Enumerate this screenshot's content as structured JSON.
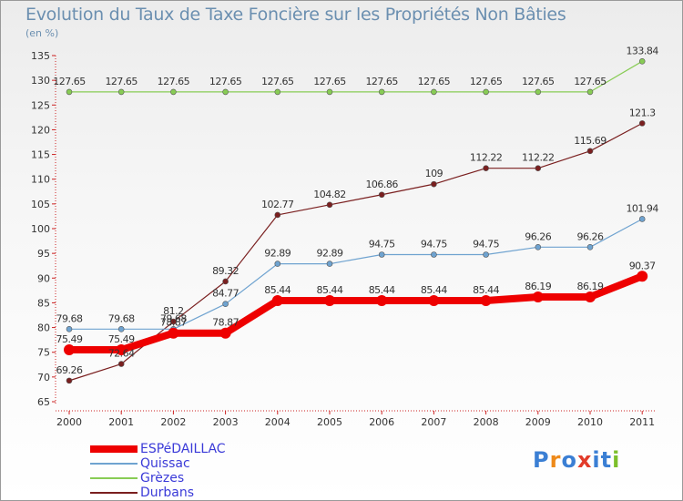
{
  "chart_data": {
    "type": "line",
    "title": "Evolution du Taux de Taxe Foncière sur les Propriétés Non Bâties",
    "ylabel": "(en %)",
    "xlabel": "",
    "categories": [
      "2000",
      "2001",
      "2002",
      "2003",
      "2004",
      "2005",
      "2006",
      "2007",
      "2008",
      "2009",
      "2010",
      "2011"
    ],
    "ylim": [
      65,
      135
    ],
    "yticks": [
      65,
      70,
      75,
      80,
      85,
      90,
      95,
      100,
      105,
      110,
      115,
      120,
      125,
      130,
      135
    ],
    "grid": false,
    "legend_position": "bottom-left",
    "series": [
      {
        "name": "Grèzes",
        "color": "#88cc55",
        "width": 1.2,
        "values": [
          127.65,
          127.65,
          127.65,
          127.65,
          127.65,
          127.65,
          127.65,
          127.65,
          127.65,
          127.65,
          127.65,
          133.84
        ],
        "labels": [
          "127.65",
          "127.65",
          "127.65",
          "127.65",
          "127.65",
          "127.65",
          "127.65",
          "127.65",
          "127.65",
          "127.65",
          "127.65",
          "133.84"
        ]
      },
      {
        "name": "Durbans",
        "color": "#7a1f1f",
        "width": 1.2,
        "values": [
          69.26,
          72.64,
          81.2,
          89.32,
          102.77,
          104.82,
          106.86,
          109,
          112.22,
          112.22,
          115.69,
          121.3
        ],
        "labels": [
          "69.26",
          "72.64",
          "81.2",
          "89.32",
          "102.77",
          "104.82",
          "106.86",
          "109",
          "112.22",
          "112.22",
          "115.69",
          "121.3"
        ]
      },
      {
        "name": "Quissac",
        "color": "#6fa3d0",
        "width": 1.2,
        "values": [
          79.68,
          79.68,
          79.68,
          84.77,
          92.89,
          92.89,
          94.75,
          94.75,
          94.75,
          96.26,
          96.26,
          101.94
        ],
        "labels": [
          "79.68",
          "79.68",
          "79.68",
          "84.77",
          "92.89",
          "92.89",
          "94.75",
          "94.75",
          "94.75",
          "96.26",
          "96.26",
          "101.94"
        ]
      },
      {
        "name": "ESPéDAILLAC",
        "color": "#ee0000",
        "width": 8,
        "values": [
          75.49,
          75.49,
          78.87,
          78.87,
          85.44,
          85.44,
          85.44,
          85.44,
          85.44,
          86.19,
          86.19,
          90.37
        ],
        "labels": [
          "75.49",
          "75.49",
          "78.87",
          "78.87",
          "85.44",
          "85.44",
          "85.44",
          "85.44",
          "85.44",
          "86.19",
          "86.19",
          "90.37"
        ]
      }
    ]
  },
  "legend": {
    "items": [
      {
        "label": "ESPéDAILLAC",
        "color": "#ee0000"
      },
      {
        "label": "Quissac",
        "color": "#6fa3d0"
      },
      {
        "label": "Grèzes",
        "color": "#88cc55"
      },
      {
        "label": "Durbans",
        "color": "#7a1f1f"
      }
    ]
  },
  "brand": {
    "text": "Proxiti",
    "letters": [
      "P",
      "r",
      "o",
      "x",
      "i",
      "t",
      "i"
    ],
    "colors": [
      "#3b7fd4",
      "#ee8a1a",
      "#3b7fd4",
      "#e23b2a",
      "#3b7fd4",
      "#3b7fd4",
      "#7cbf2a"
    ]
  }
}
